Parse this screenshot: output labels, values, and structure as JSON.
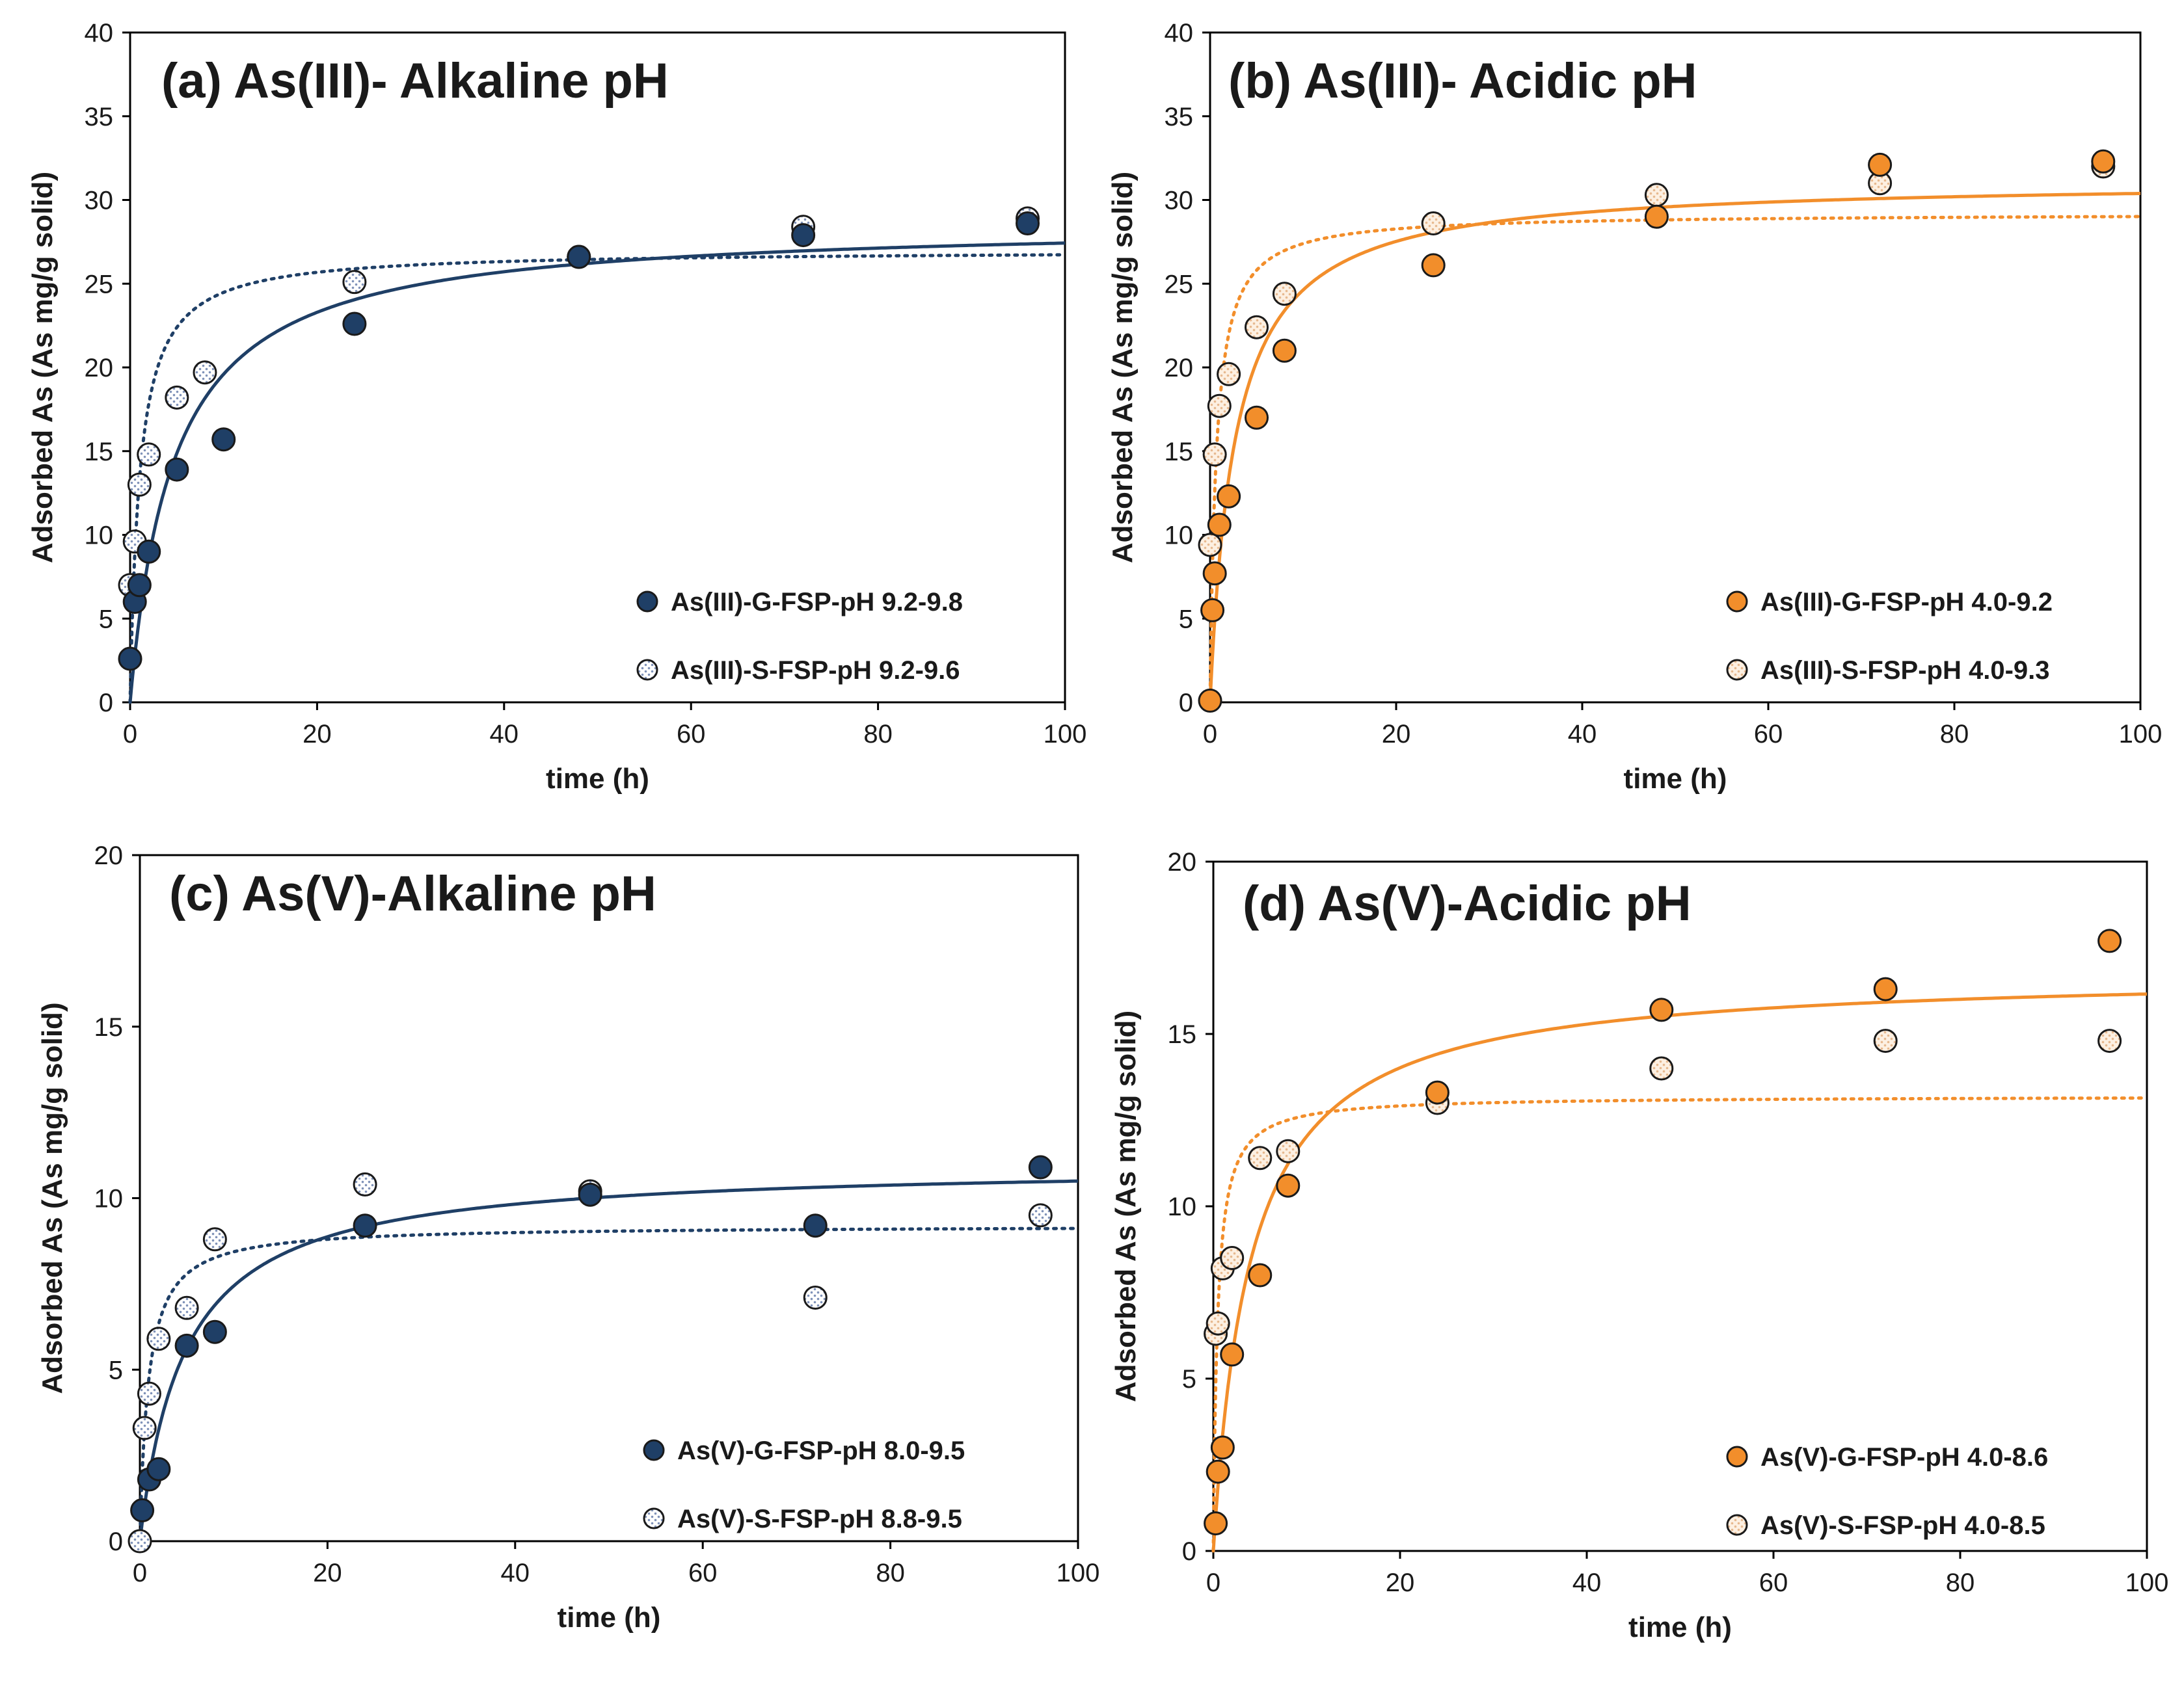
{
  "chart_data": [
    {
      "type": "scatter",
      "title": "(a) As(III)- Alkaline pH",
      "xlabel": "time (h)",
      "ylabel": "Adsorbed As (As mg/g solid)",
      "xlim": [
        0,
        100
      ],
      "ylim": [
        0,
        40
      ],
      "xticks": [
        0,
        20,
        40,
        60,
        80,
        100
      ],
      "yticks": [
        0,
        5,
        10,
        15,
        20,
        25,
        30,
        35,
        40
      ],
      "legend_position": "bottom-right",
      "colors": {
        "primary": "#1f3f66",
        "secondary_fill": "#dfe4ef",
        "outline": "#1a1a1a"
      },
      "series": [
        {
          "name": "As(III)-G-FSP-pH 9.2-9.8",
          "marker": "solid",
          "x": [
            0,
            0.5,
            1,
            2,
            5,
            10,
            24,
            48,
            72,
            96
          ],
          "y": [
            2.6,
            6.0,
            7.0,
            9.0,
            13.9,
            15.7,
            22.6,
            26.6,
            27.9,
            28.6
          ],
          "fit": {
            "style": "solid",
            "model": "pso",
            "qe": 28.7,
            "k": 0.0075
          }
        },
        {
          "name": "As(III)-S-FSP-pH 9.2-9.6",
          "marker": "dotted",
          "x": [
            0,
            0.5,
            1,
            2,
            5,
            8,
            24,
            48,
            72,
            96
          ],
          "y": [
            7.0,
            9.6,
            13.0,
            14.8,
            18.2,
            19.7,
            25.1,
            26.6,
            28.4,
            28.9
          ],
          "fit": {
            "style": "dotted",
            "model": "pso",
            "qe": 27.0,
            "k": 0.036
          }
        }
      ]
    },
    {
      "type": "scatter",
      "title": "(b) As(III)- Acidic pH",
      "xlabel": "time (h)",
      "ylabel": "Adsorbed As (As mg/g solid)",
      "xlim": [
        0,
        100
      ],
      "ylim": [
        0,
        40
      ],
      "xticks": [
        0,
        20,
        40,
        60,
        80,
        100
      ],
      "yticks": [
        0,
        5,
        10,
        15,
        20,
        25,
        30,
        35,
        40
      ],
      "legend_position": "bottom-right",
      "colors": {
        "primary": "#f28e2b",
        "secondary_fill": "#fbe3cc",
        "outline": "#1a1a1a"
      },
      "series": [
        {
          "name": "As(III)-G-FSP-pH 4.0-9.2",
          "marker": "solid",
          "x": [
            0,
            0.25,
            0.5,
            1,
            2,
            5,
            8,
            24,
            48,
            72,
            96
          ],
          "y": [
            0.1,
            5.5,
            7.7,
            10.6,
            12.3,
            17.0,
            21.0,
            26.1,
            29.0,
            32.1,
            32.3
          ],
          "fit": {
            "style": "solid",
            "model": "pso",
            "qe": 31.2,
            "k": 0.012
          }
        },
        {
          "name": "As(III)-S-FSP-pH 4.0-9.3",
          "marker": "dotted",
          "x": [
            0,
            0.5,
            1,
            2,
            5,
            8,
            24,
            48,
            72,
            96
          ],
          "y": [
            9.4,
            14.8,
            17.7,
            19.6,
            22.4,
            24.4,
            28.6,
            30.3,
            31.0,
            32.0
          ],
          "fit": {
            "style": "dotted",
            "model": "pso",
            "qe": 29.2,
            "k": 0.052
          }
        }
      ]
    },
    {
      "type": "scatter",
      "title": "(c) As(V)-Alkaline pH",
      "xlabel": "time (h)",
      "ylabel": "Adsorbed As (As mg/g solid)",
      "xlim": [
        0,
        100
      ],
      "ylim": [
        0,
        20
      ],
      "xticks": [
        0,
        20,
        40,
        60,
        80,
        100
      ],
      "yticks": [
        0,
        5,
        10,
        15,
        20
      ],
      "legend_position": "bottom-right",
      "colors": {
        "primary": "#1f3f66",
        "secondary_fill": "#dfe4ef",
        "outline": "#1a1a1a"
      },
      "series": [
        {
          "name": "As(V)-G-FSP-pH 8.0-9.5",
          "marker": "solid",
          "x": [
            0.25,
            1,
            2,
            5,
            8,
            24,
            48,
            72,
            96
          ],
          "y": [
            0.9,
            1.8,
            2.1,
            5.7,
            6.1,
            9.2,
            10.1,
            9.2,
            10.9
          ],
          "fit": {
            "style": "solid",
            "model": "pso",
            "qe": 11.0,
            "k": 0.019
          }
        },
        {
          "name": "As(V)-S-FSP-pH 8.8-9.5",
          "marker": "dotted",
          "x": [
            0,
            0.5,
            1,
            2,
            5,
            8,
            24,
            48,
            72,
            96
          ],
          "y": [
            0.0,
            3.3,
            4.3,
            5.9,
            6.8,
            8.8,
            10.4,
            10.2,
            7.1,
            9.5
          ],
          "fit": {
            "style": "dotted",
            "model": "pso",
            "qe": 9.2,
            "k": 0.12
          }
        }
      ]
    },
    {
      "type": "scatter",
      "title": "(d) As(V)-Acidic pH",
      "xlabel": "time (h)",
      "ylabel": "Adsorbed As (As mg/g solid)",
      "xlim": [
        0,
        100
      ],
      "ylim": [
        0,
        20
      ],
      "xticks": [
        0,
        20,
        40,
        60,
        80,
        100
      ],
      "yticks": [
        0,
        5,
        10,
        15,
        20
      ],
      "legend_position": "bottom-right",
      "colors": {
        "primary": "#f28e2b",
        "secondary_fill": "#fbe3cc",
        "outline": "#1a1a1a"
      },
      "series": [
        {
          "name": "As(V)-G-FSP-pH 4.0-8.6",
          "marker": "solid",
          "x": [
            0.25,
            0.5,
            1,
            2,
            5,
            8,
            24,
            48,
            72,
            96
          ],
          "y": [
            0.8,
            2.3,
            3.0,
            5.7,
            8.0,
            10.6,
            13.3,
            15.7,
            16.3,
            17.7
          ],
          "fit": {
            "style": "solid",
            "model": "pso",
            "qe": 16.8,
            "k": 0.015
          }
        },
        {
          "name": "As(V)-S-FSP-pH 4.0-8.5",
          "marker": "dotted",
          "x": [
            0.25,
            0.5,
            1,
            2,
            5,
            8,
            24,
            48,
            72,
            96
          ],
          "y": [
            6.3,
            6.6,
            8.2,
            8.5,
            11.4,
            11.6,
            13.0,
            14.0,
            14.8,
            14.8
          ],
          "fit": {
            "style": "dotted",
            "model": "pso",
            "qe": 13.2,
            "k": 0.17
          }
        }
      ]
    }
  ]
}
